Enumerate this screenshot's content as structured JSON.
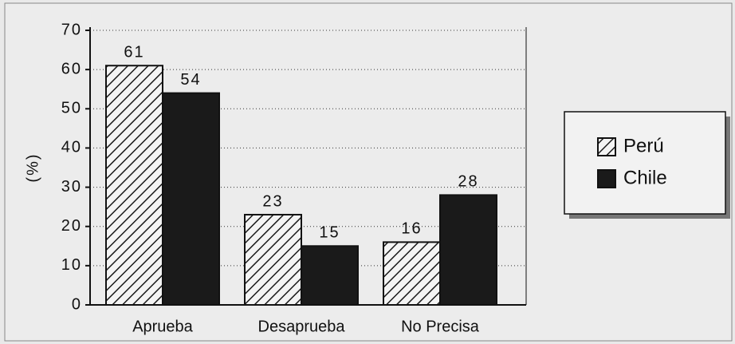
{
  "chart_data": {
    "type": "bar",
    "y_label": "(%)",
    "categories": [
      "Aprueba",
      "Desaprueba",
      "No Precisa"
    ],
    "series": [
      {
        "name": "Perú",
        "color": "#1a1a1a",
        "fill": "hatch",
        "values": [
          61,
          23,
          16
        ]
      },
      {
        "name": "Chile",
        "color": "#1a1a1a",
        "fill": "solid",
        "values": [
          54,
          15,
          28
        ]
      }
    ],
    "ylim": [
      0,
      70
    ],
    "yticks": [
      0,
      10,
      20,
      30,
      40,
      50,
      60,
      70
    ],
    "grid": true,
    "legend": "right"
  }
}
